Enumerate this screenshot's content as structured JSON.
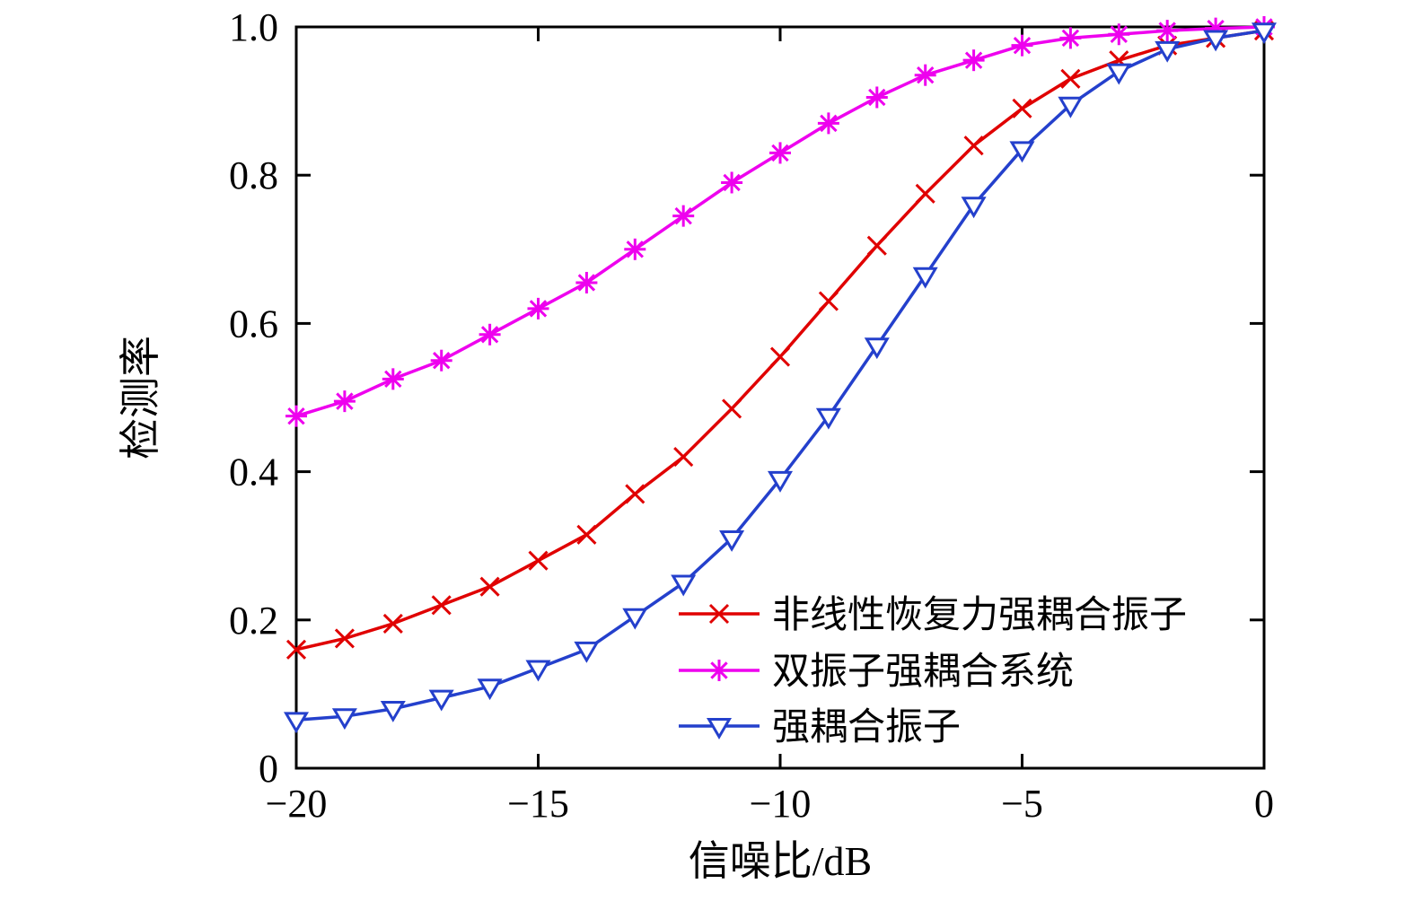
{
  "figure": {
    "background": "#ffffff",
    "axis_color": "#000000"
  },
  "chart_data": {
    "type": "line",
    "title": "",
    "xlabel": "信噪比/dB",
    "ylabel": "检测率",
    "xlim": [
      -20,
      0
    ],
    "ylim": [
      0,
      1
    ],
    "grid": false,
    "legend_position": "inside-lower-right",
    "x_ticks": [
      {
        "value": -20,
        "label": "−20"
      },
      {
        "value": -15,
        "label": "−15"
      },
      {
        "value": -10,
        "label": "−10"
      },
      {
        "value": -5,
        "label": "−5"
      },
      {
        "value": 0,
        "label": "0"
      }
    ],
    "y_ticks": [
      {
        "value": 0.0,
        "label": "0"
      },
      {
        "value": 0.2,
        "label": "0.2"
      },
      {
        "value": 0.4,
        "label": "0.4"
      },
      {
        "value": 0.6,
        "label": "0.6"
      },
      {
        "value": 0.8,
        "label": "0.8"
      },
      {
        "value": 1.0,
        "label": "1.0"
      }
    ],
    "x": [
      -20,
      -19,
      -18,
      -17,
      -16,
      -15,
      -14,
      -13,
      -12,
      -11,
      -10,
      -9,
      -8,
      -7,
      -6,
      -5,
      -4,
      -3,
      -2,
      -1,
      0
    ],
    "series": [
      {
        "name": "非线性恢复力强耦合振子",
        "color": "#e00000",
        "marker": "x",
        "values": [
          0.16,
          0.175,
          0.195,
          0.22,
          0.245,
          0.28,
          0.315,
          0.37,
          0.42,
          0.485,
          0.555,
          0.63,
          0.705,
          0.775,
          0.84,
          0.89,
          0.93,
          0.955,
          0.975,
          0.985,
          0.995
        ]
      },
      {
        "name": "双振子强耦合系统",
        "color": "#ee00ee",
        "marker": "asterisk",
        "values": [
          0.475,
          0.495,
          0.525,
          0.55,
          0.585,
          0.62,
          0.655,
          0.7,
          0.745,
          0.79,
          0.83,
          0.87,
          0.905,
          0.935,
          0.955,
          0.975,
          0.985,
          0.99,
          0.995,
          0.998,
          1.0
        ]
      },
      {
        "name": "强耦合振子",
        "color": "#2440cc",
        "marker": "triangle-down",
        "values": [
          0.065,
          0.07,
          0.08,
          0.095,
          0.11,
          0.135,
          0.16,
          0.205,
          0.25,
          0.31,
          0.39,
          0.475,
          0.57,
          0.665,
          0.76,
          0.835,
          0.895,
          0.94,
          0.97,
          0.985,
          0.995
        ]
      }
    ]
  }
}
